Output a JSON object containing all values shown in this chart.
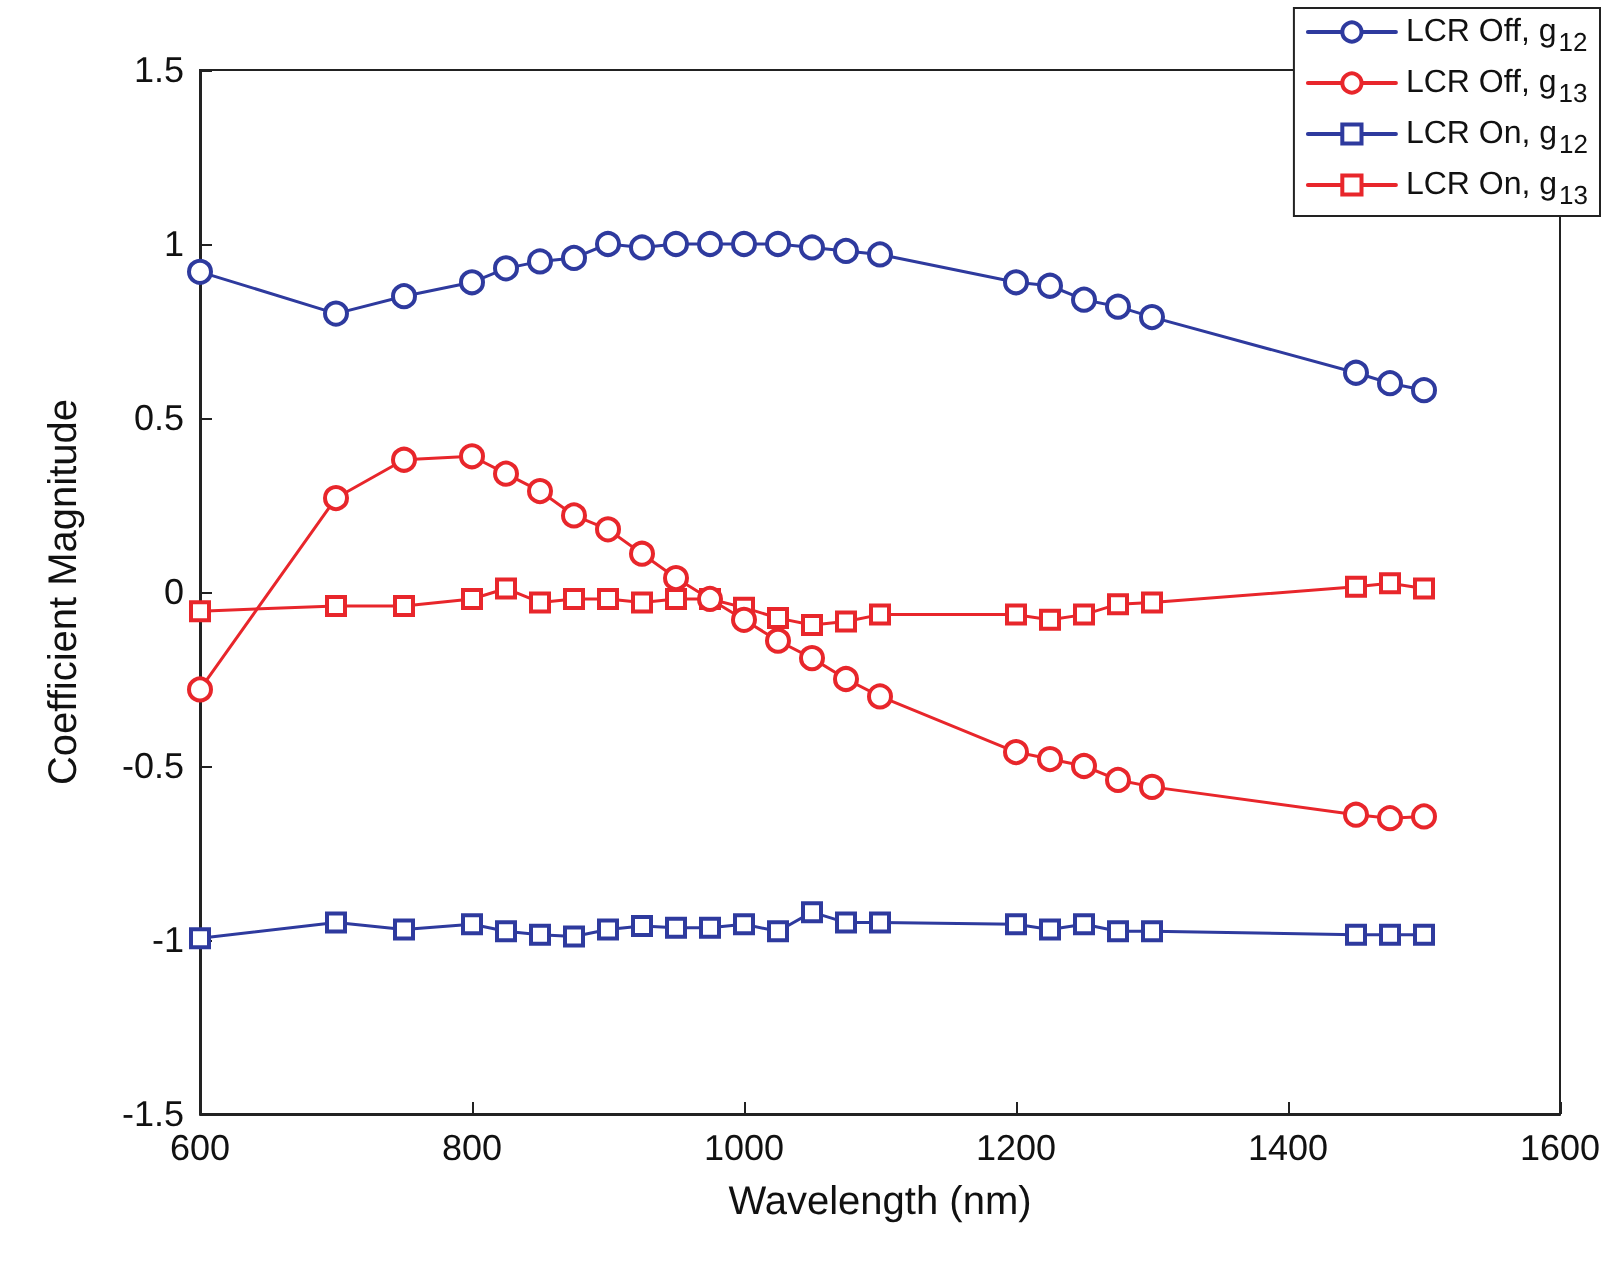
{
  "chart_data": {
    "type": "line",
    "xlabel": "Wavelength (nm)",
    "ylabel": "Coefficient Magnitude",
    "x": [
      600,
      700,
      750,
      800,
      825,
      850,
      875,
      900,
      925,
      950,
      975,
      1000,
      1025,
      1050,
      1075,
      1100,
      1200,
      1225,
      1250,
      1275,
      1300,
      1450,
      1475,
      1500
    ],
    "series": [
      {
        "name": "LCR Off, g$_{12}$",
        "color": "#2e3a9e",
        "marker": "circle",
        "values": [
          0.92,
          0.8,
          0.85,
          0.89,
          0.93,
          0.95,
          0.96,
          1.0,
          0.99,
          1.0,
          1.0,
          1.0,
          1.0,
          0.99,
          0.98,
          0.97,
          0.89,
          0.88,
          0.84,
          0.82,
          0.79,
          0.63,
          0.6,
          0.58
        ]
      },
      {
        "name": "LCR Off, g$_{13}$",
        "color": "#e8262b",
        "marker": "circle",
        "values": [
          -0.28,
          0.27,
          0.38,
          0.39,
          0.34,
          0.29,
          0.22,
          0.18,
          0.11,
          0.04,
          -0.02,
          -0.08,
          -0.14,
          -0.19,
          -0.25,
          -0.3,
          -0.46,
          -0.48,
          -0.5,
          -0.54,
          -0.56,
          -0.64,
          -0.65,
          -0.645
        ]
      },
      {
        "name": "LCR On, g$_{12}$",
        "color": "#2e3a9e",
        "marker": "square",
        "values": [
          -0.995,
          -0.95,
          -0.97,
          -0.955,
          -0.975,
          -0.985,
          -0.99,
          -0.97,
          -0.96,
          -0.965,
          -0.965,
          -0.955,
          -0.975,
          -0.92,
          -0.95,
          -0.95,
          -0.955,
          -0.97,
          -0.955,
          -0.975,
          -0.975,
          -0.985,
          -0.985,
          -0.985
        ]
      },
      {
        "name": "LCR On, g$_{13}$",
        "color": "#e8262b",
        "marker": "square",
        "values": [
          -0.055,
          -0.04,
          -0.04,
          -0.02,
          0.01,
          -0.03,
          -0.02,
          -0.02,
          -0.03,
          -0.02,
          -0.02,
          -0.045,
          -0.075,
          -0.095,
          -0.085,
          -0.065,
          -0.065,
          -0.08,
          -0.065,
          -0.035,
          -0.03,
          0.015,
          0.025,
          0.01
        ]
      }
    ],
    "xlim": [
      600,
      1600
    ],
    "xticks": [
      600,
      800,
      1000,
      1200,
      1400,
      1600
    ],
    "ylim": [
      -1.5,
      1.5
    ],
    "yticks": [
      -1.5,
      -1,
      -0.5,
      0,
      0.5,
      1,
      1.5
    ],
    "grid": false,
    "legend": "top right",
    "line_style": "solid"
  }
}
